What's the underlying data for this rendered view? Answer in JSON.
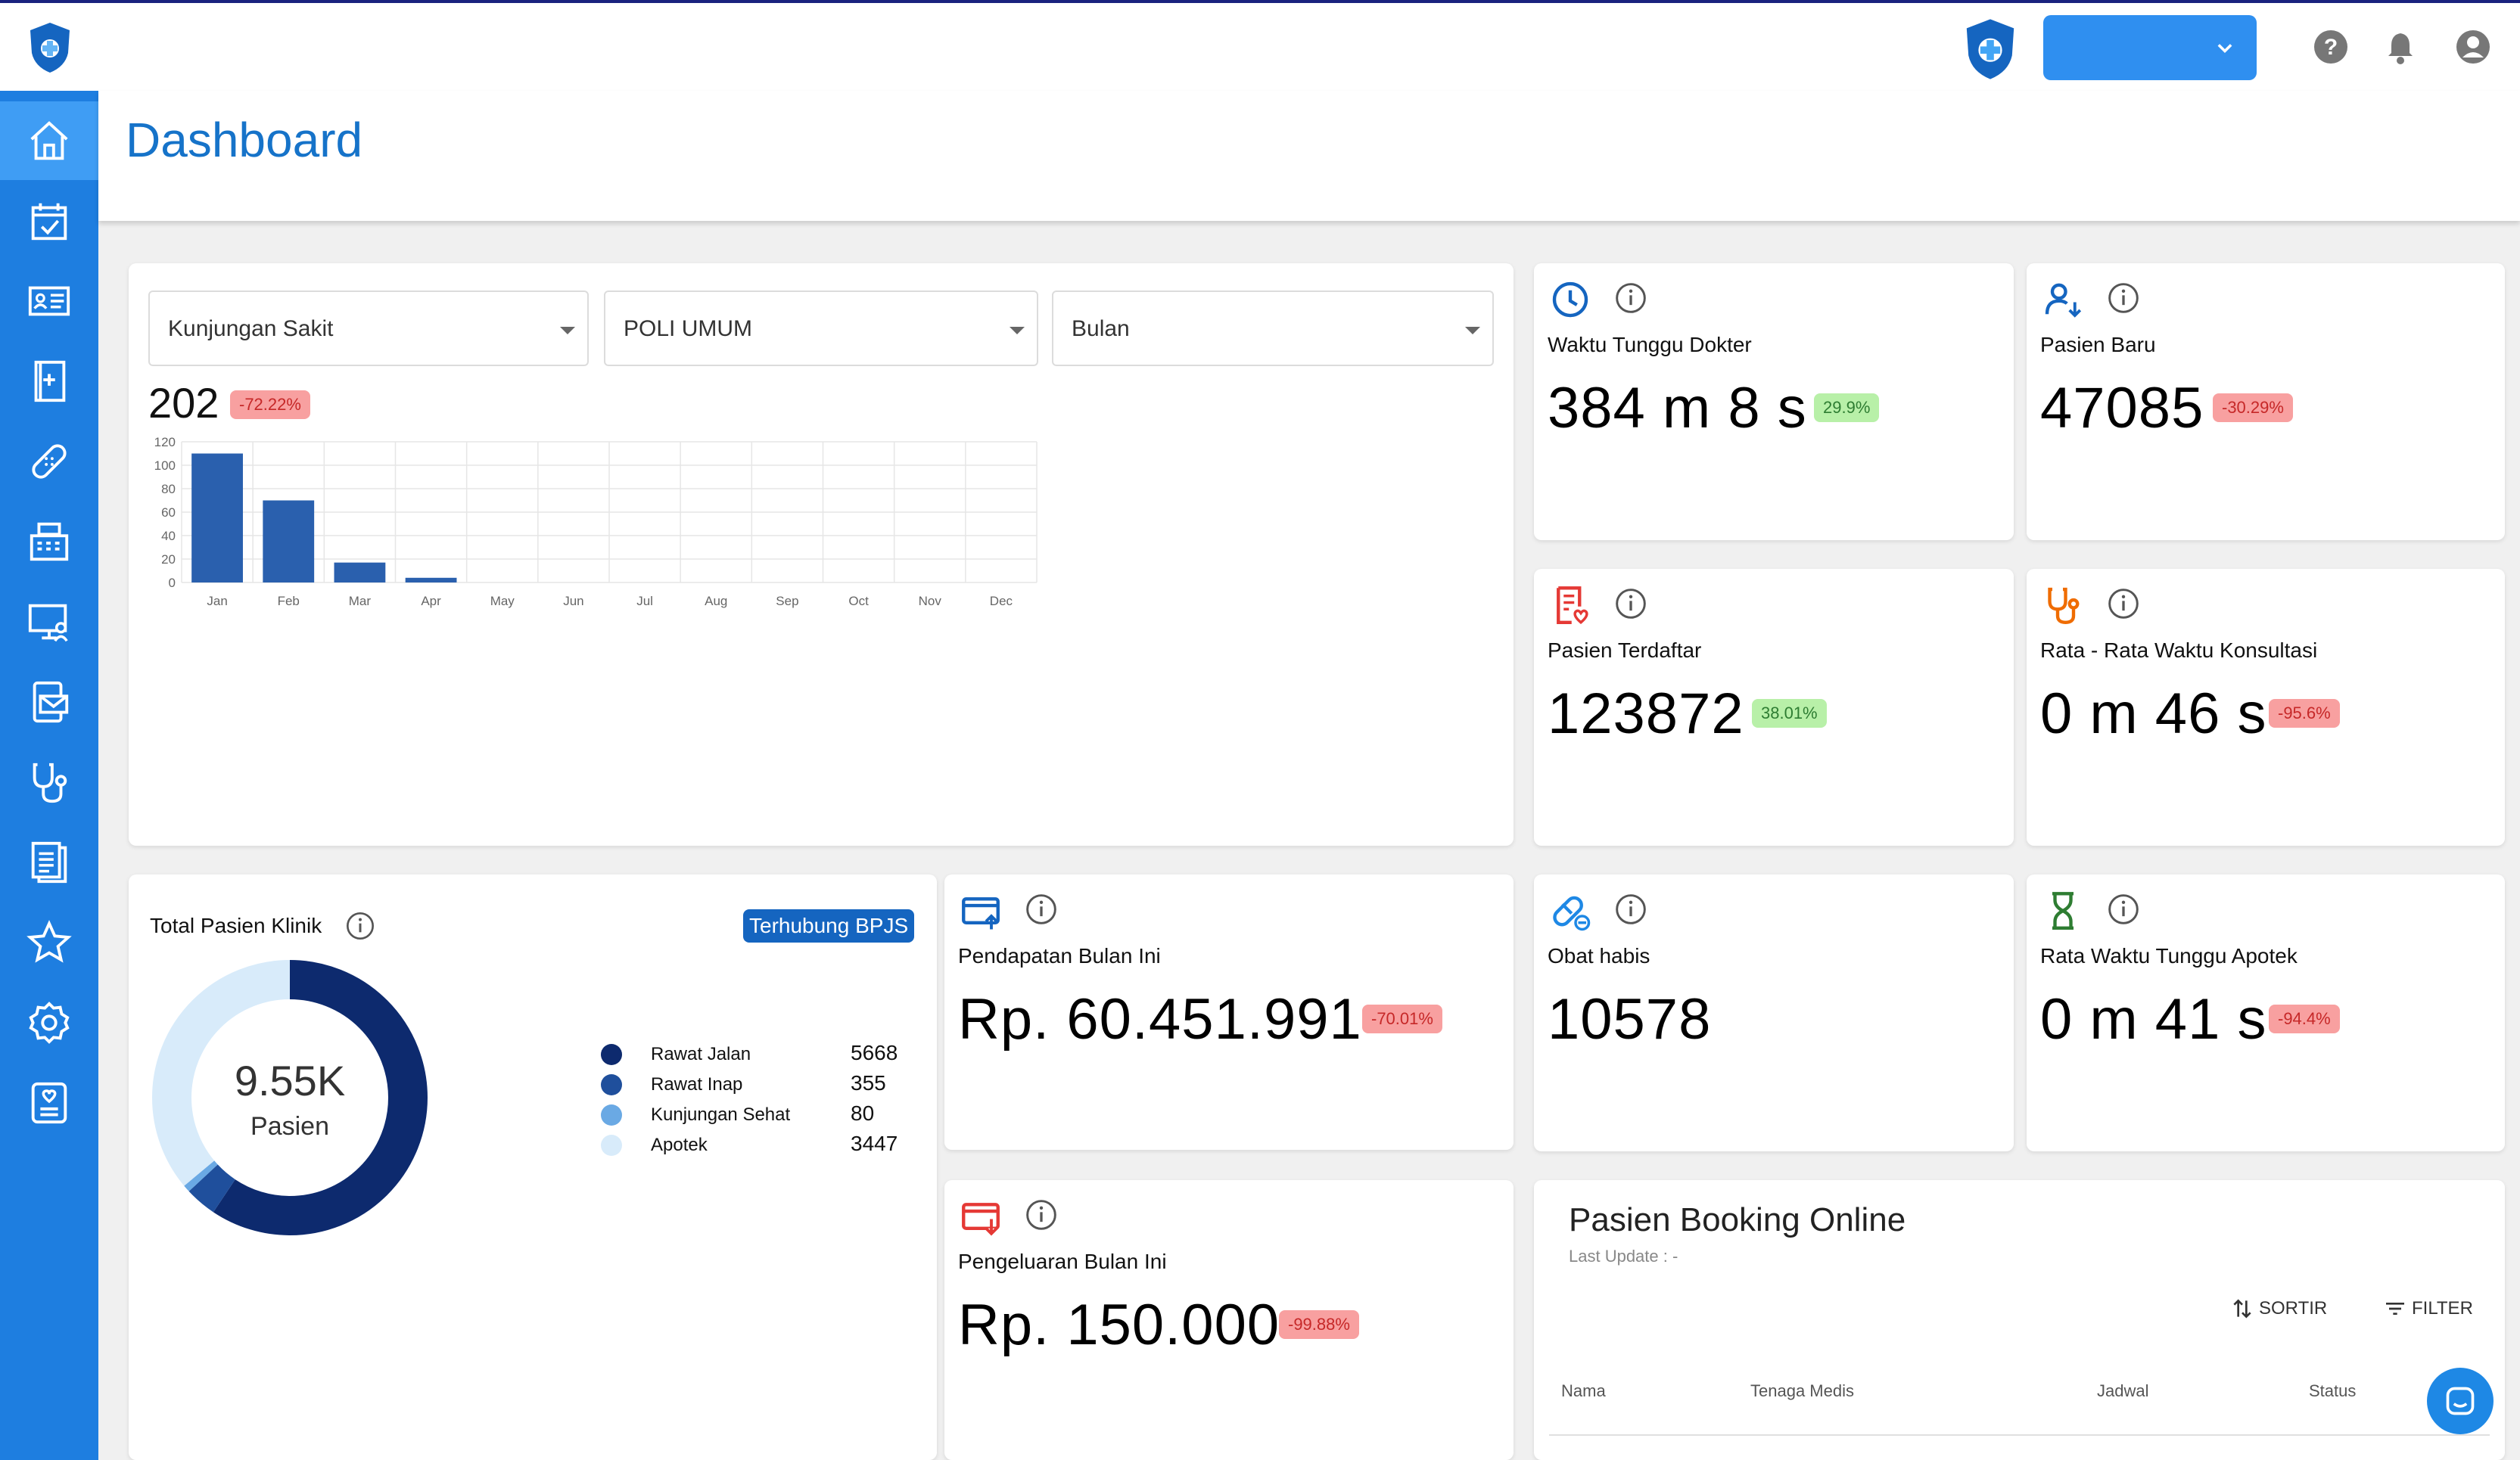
{
  "header": {
    "title": "Dashboard"
  },
  "topbar": {
    "clinic_select_value": ""
  },
  "visits_card": {
    "filters": {
      "type": "Kunjungan Sakit",
      "poli": "POLI UMUM",
      "period": "Bulan"
    },
    "total": "202",
    "change": "-72.22%"
  },
  "chart_data": {
    "type": "bar",
    "categories": [
      "Jan",
      "Feb",
      "Mar",
      "Apr",
      "May",
      "Jun",
      "Jul",
      "Aug",
      "Sep",
      "Oct",
      "Nov",
      "Dec"
    ],
    "values": [
      110,
      70,
      17,
      4,
      0,
      0,
      0,
      0,
      0,
      0,
      0,
      0
    ],
    "ylim": [
      0,
      120
    ],
    "yticks": [
      "0",
      "20",
      "40",
      "60",
      "80",
      "100",
      "120"
    ],
    "grid": true,
    "colors": {
      "bar": "#2a60ae"
    }
  },
  "stats": {
    "waktu_tunggu_dokter": {
      "title": "Waktu Tunggu Dokter",
      "value": "384 m 8 s",
      "change": "29.9%"
    },
    "pasien_baru": {
      "title": "Pasien Baru",
      "value": "47085",
      "change": "-30.29%"
    },
    "pasien_terdaftar": {
      "title": "Pasien Terdaftar",
      "value": "123872",
      "change": "38.01%"
    },
    "rata_konsultasi": {
      "title": "Rata - Rata Waktu Konsultasi",
      "value": "0 m 46 s",
      "change": "-95.6%"
    },
    "pendapatan": {
      "title": "Pendapatan Bulan Ini",
      "value": "Rp. 60.451.991",
      "change": "-70.01%"
    },
    "obat_habis": {
      "title": "Obat habis",
      "value": "10578"
    },
    "rata_apotek": {
      "title": "Rata Waktu Tunggu Apotek",
      "value": "0 m 41 s",
      "change": "-94.4%"
    },
    "pengeluaran": {
      "title": "Pengeluaran Bulan Ini",
      "value": "Rp. 150.000",
      "change": "-99.88%"
    }
  },
  "patients_card": {
    "title": "Total Pasien Klinik",
    "bpjs_label": "Terhubung BPJS",
    "center_value": "9.55K",
    "center_label": "Pasien",
    "legend": [
      {
        "label": "Rawat Jalan",
        "value": "5668",
        "color": "#0d2a6e"
      },
      {
        "label": "Rawat Inap",
        "value": "355",
        "color": "#1f4f9c"
      },
      {
        "label": "Kunjungan Sehat",
        "value": "80",
        "color": "#6aa9e4"
      },
      {
        "label": "Apotek",
        "value": "3447",
        "color": "#d8ebfa"
      }
    ]
  },
  "booking": {
    "title": "Pasien Booking Online",
    "last_update": "Last Update : -",
    "sort_label": "SORTIR",
    "filter_label": "FILTER",
    "columns": [
      "Nama",
      "Tenaga Medis",
      "Jadwal",
      "Status"
    ]
  },
  "colors": {
    "primary": "#1e7ee0",
    "title_blue": "#1673c9",
    "badge_red": "#f8a0a0",
    "badge_green": "#b8f0a8"
  }
}
